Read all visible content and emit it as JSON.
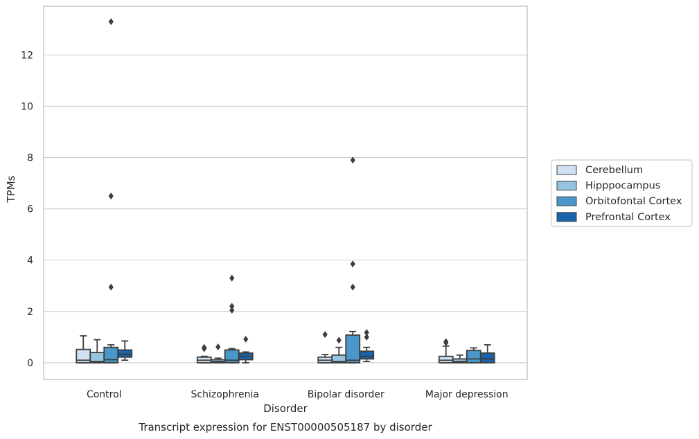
{
  "chart_data": {
    "type": "box",
    "title": "Transcript expression for ENST00000505187 by disorder",
    "xlabel": "Disorder",
    "ylabel": "TPMs",
    "categories": [
      "Control",
      "Schizophrenia",
      "Bipolar disorder",
      "Major depression"
    ],
    "yticks": [
      0,
      2,
      4,
      6,
      8,
      10,
      12
    ],
    "ylim": [
      -0.65,
      13.9
    ],
    "grid": true,
    "legend_position": "right",
    "series": [
      {
        "name": "Cerebellum",
        "color": "#cfe1f2",
        "boxes": [
          {
            "whisker_low": 0.0,
            "q1": 0.0,
            "median": 0.1,
            "q3": 0.52,
            "whisker_high": 1.05,
            "outliers": []
          },
          {
            "whisker_low": 0.0,
            "q1": 0.0,
            "median": 0.1,
            "q3": 0.22,
            "whisker_high": 0.25,
            "outliers": [
              0.55,
              0.6
            ]
          },
          {
            "whisker_low": 0.0,
            "q1": 0.0,
            "median": 0.1,
            "q3": 0.22,
            "whisker_high": 0.32,
            "outliers": [
              1.1
            ]
          },
          {
            "whisker_low": 0.0,
            "q1": 0.0,
            "median": 0.1,
            "q3": 0.25,
            "whisker_high": 0.65,
            "outliers": [
              0.78,
              0.82
            ]
          }
        ]
      },
      {
        "name": "Hipppocampus",
        "color": "#94c4df",
        "boxes": [
          {
            "whisker_low": 0.0,
            "q1": 0.0,
            "median": 0.05,
            "q3": 0.4,
            "whisker_high": 0.9,
            "outliers": []
          },
          {
            "whisker_low": 0.0,
            "q1": 0.0,
            "median": 0.05,
            "q3": 0.12,
            "whisker_high": 0.18,
            "outliers": [
              0.62
            ]
          },
          {
            "whisker_low": 0.0,
            "q1": 0.0,
            "median": 0.05,
            "q3": 0.3,
            "whisker_high": 0.6,
            "outliers": [
              0.88
            ]
          },
          {
            "whisker_low": 0.0,
            "q1": 0.0,
            "median": 0.05,
            "q3": 0.15,
            "whisker_high": 0.3,
            "outliers": []
          }
        ]
      },
      {
        "name": "Orbitofontal Cortex",
        "color": "#4a98c9",
        "boxes": [
          {
            "whisker_low": 0.0,
            "q1": 0.0,
            "median": 0.12,
            "q3": 0.6,
            "whisker_high": 0.7,
            "outliers": [
              2.95,
              6.5,
              13.3
            ]
          },
          {
            "whisker_low": 0.0,
            "q1": 0.0,
            "median": 0.1,
            "q3": 0.5,
            "whisker_high": 0.55,
            "outliers": [
              2.05,
              2.2,
              3.3
            ]
          },
          {
            "whisker_low": 0.0,
            "q1": 0.0,
            "median": 0.1,
            "q3": 1.08,
            "whisker_high": 1.22,
            "outliers": [
              2.95,
              3.85,
              7.9
            ]
          },
          {
            "whisker_low": 0.0,
            "q1": 0.0,
            "median": 0.15,
            "q3": 0.48,
            "whisker_high": 0.58,
            "outliers": []
          }
        ]
      },
      {
        "name": "Prefrontal Cortex",
        "color": "#1764ab",
        "boxes": [
          {
            "whisker_low": 0.1,
            "q1": 0.22,
            "median": 0.33,
            "q3": 0.5,
            "whisker_high": 0.85,
            "outliers": []
          },
          {
            "whisker_low": 0.0,
            "q1": 0.12,
            "median": 0.25,
            "q3": 0.38,
            "whisker_high": 0.42,
            "outliers": [
              0.92
            ]
          },
          {
            "whisker_low": 0.05,
            "q1": 0.15,
            "median": 0.25,
            "q3": 0.45,
            "whisker_high": 0.6,
            "outliers": [
              1.0,
              1.18
            ]
          },
          {
            "whisker_low": 0.0,
            "q1": 0.0,
            "median": 0.15,
            "q3": 0.38,
            "whisker_high": 0.7,
            "outliers": []
          }
        ]
      }
    ]
  }
}
